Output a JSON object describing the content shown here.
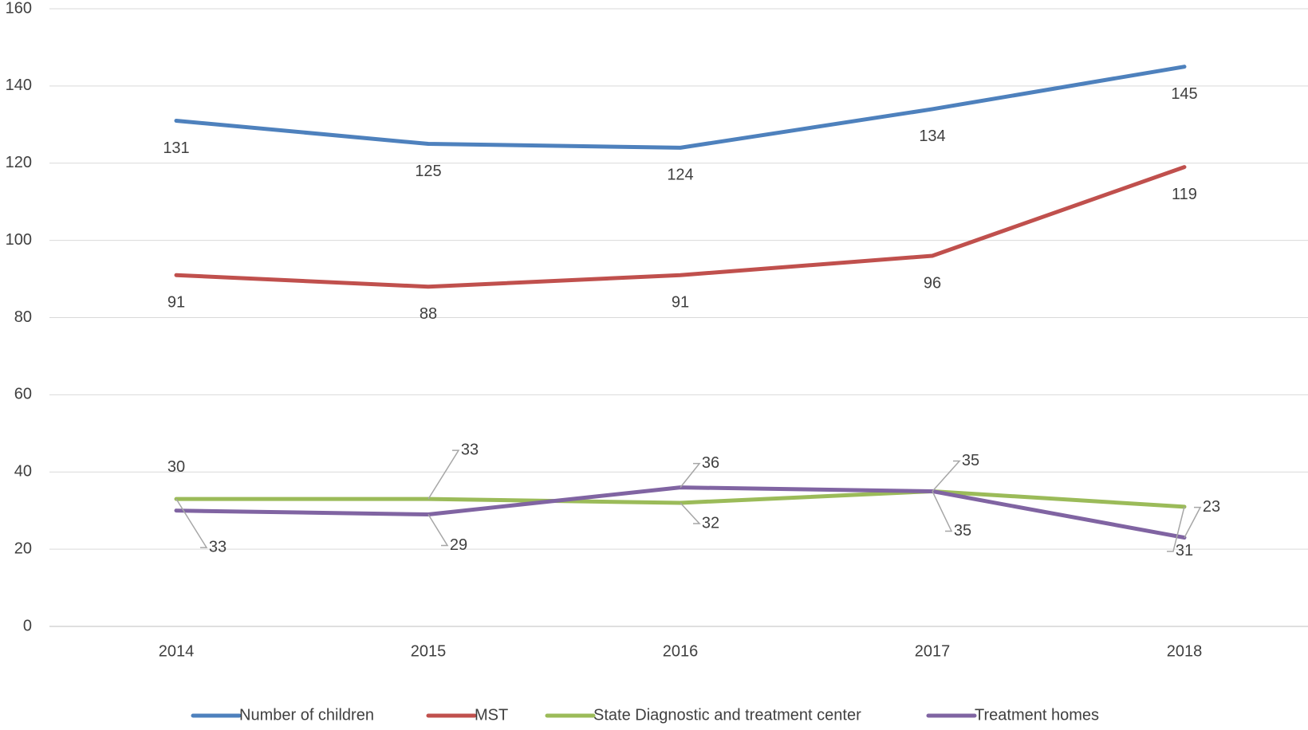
{
  "chart_data": {
    "type": "line",
    "title": "",
    "xlabel": "",
    "ylabel": "",
    "categories": [
      "2014",
      "2015",
      "2016",
      "2017",
      "2018"
    ],
    "ylim": [
      0,
      160
    ],
    "yticks": [
      0,
      20,
      40,
      60,
      80,
      100,
      120,
      140,
      160
    ],
    "grid": true,
    "legend_position": "bottom",
    "series": [
      {
        "name": "Number of children",
        "color": "#4e81bd",
        "values": [
          131,
          125,
          124,
          134,
          145
        ]
      },
      {
        "name": "MST",
        "color": "#c0504d",
        "values": [
          91,
          88,
          91,
          96,
          119
        ]
      },
      {
        "name": "State Diagnostic and treatment center",
        "color": "#9bbb59",
        "values": [
          33,
          33,
          32,
          35,
          31
        ]
      },
      {
        "name": "Treatment homes",
        "color": "#8064a2",
        "values": [
          30,
          29,
          36,
          35,
          23
        ]
      }
    ]
  }
}
